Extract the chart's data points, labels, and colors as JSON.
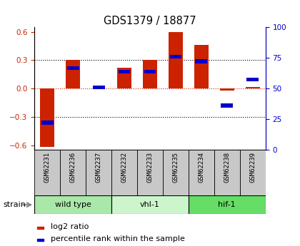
{
  "title": "GDS1379 / 18877",
  "samples": [
    "GSM62231",
    "GSM62236",
    "GSM62237",
    "GSM62232",
    "GSM62233",
    "GSM62235",
    "GSM62234",
    "GSM62238",
    "GSM62239"
  ],
  "log2_ratio": [
    -0.62,
    0.3,
    0.005,
    0.22,
    0.3,
    0.6,
    0.46,
    -0.02,
    0.02
  ],
  "percentile_rank": [
    20,
    68,
    51,
    65,
    65,
    78,
    74,
    35,
    58
  ],
  "groups": [
    {
      "label": "wild type",
      "indices": [
        0,
        1,
        2
      ],
      "color": "#aae8aa"
    },
    {
      "label": "vhl-1",
      "indices": [
        3,
        4,
        5
      ],
      "color": "#ccf5cc"
    },
    {
      "label": "hif-1",
      "indices": [
        6,
        7,
        8
      ],
      "color": "#66dd66"
    }
  ],
  "ylim_left": [
    -0.65,
    0.65
  ],
  "ylim_right": [
    0,
    100
  ],
  "yticks_left": [
    -0.6,
    -0.3,
    0.0,
    0.3,
    0.6
  ],
  "yticks_right": [
    0,
    25,
    50,
    75,
    100
  ],
  "bar_width": 0.55,
  "red_color": "#cc2200",
  "blue_color": "#0000cc",
  "label_bg_color": "#c8c8c8",
  "group_border_color": "#000000"
}
